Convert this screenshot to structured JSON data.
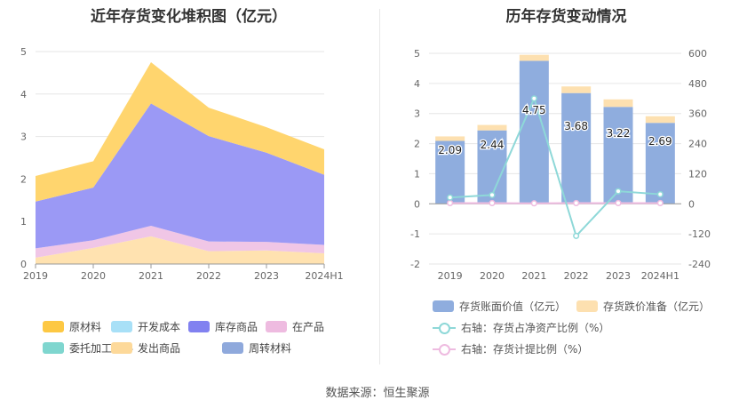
{
  "left_chart": {
    "title": "近年存货变化堆积图（亿元）",
    "chart_data": {
      "type": "area",
      "stacked": true,
      "categories": [
        "2019",
        "2020",
        "2021",
        "2022",
        "2023",
        "2024H1"
      ],
      "ylim": [
        0,
        5
      ],
      "yticks": [
        "0",
        "1",
        "2",
        "3",
        "4",
        "5"
      ],
      "series": [
        {
          "name": "发出商品",
          "color": "#ffe2b0",
          "values": [
            0.15,
            0.38,
            0.65,
            0.3,
            0.32,
            0.25
          ]
        },
        {
          "name": "在产品",
          "color": "#f0c6e6",
          "values": [
            0.22,
            0.18,
            0.25,
            0.23,
            0.2,
            0.2
          ]
        },
        {
          "name": "库存商品",
          "color": "#9b99f5",
          "values": [
            1.1,
            1.24,
            2.88,
            2.48,
            2.1,
            1.65
          ]
        },
        {
          "name": "原材料",
          "color": "#ffd56e",
          "values": [
            0.6,
            0.62,
            0.97,
            0.67,
            0.6,
            0.6
          ]
        }
      ],
      "legend": [
        {
          "name": "原材料",
          "color": "#fdc843"
        },
        {
          "name": "开发成本",
          "color": "#a8e0f7"
        },
        {
          "name": "库存商品",
          "color": "#8181f0"
        },
        {
          "name": "在产品",
          "color": "#eebbe0"
        },
        {
          "name": "委托加工材料",
          "color": "#7fd6cf"
        },
        {
          "name": "发出商品",
          "color": "#fdd99a"
        },
        {
          "name": "周转材料",
          "color": "#8fa9dc"
        }
      ],
      "grid": true,
      "legend_position": "bottom"
    }
  },
  "right_chart": {
    "title": "历年存货变动情况",
    "chart_data": {
      "type": "bar",
      "categories": [
        "2019",
        "2020",
        "2021",
        "2022",
        "2023",
        "2024H1"
      ],
      "ylim": [
        -2,
        5
      ],
      "yticks": [
        "-2",
        "-1",
        "0",
        "1",
        "2",
        "3",
        "4",
        "5"
      ],
      "y2lim": [
        -240,
        600
      ],
      "y2ticks": [
        "-240",
        "-120",
        "0",
        "120",
        "240",
        "360",
        "480",
        "600"
      ],
      "series": [
        {
          "name": "存货账面价值（亿元）",
          "color": "#8fadde",
          "values": [
            2.09,
            2.44,
            4.75,
            3.68,
            3.22,
            2.69
          ],
          "labels": [
            "2.09",
            "2.44",
            "4.75",
            "3.68",
            "3.22",
            "2.69"
          ]
        },
        {
          "name": "存货跌价准备（亿元）",
          "color": "#fde0b0",
          "values": [
            0.15,
            0.18,
            0.2,
            0.22,
            0.25,
            0.22
          ]
        },
        {
          "name": "右轴：存货占净资产比例（%）",
          "color": "#8ed8d8",
          "axis": "right",
          "values": [
            25,
            35,
            420,
            -128,
            50,
            38
          ]
        },
        {
          "name": "右轴：存货计提比例（%）",
          "color": "#eebbe0",
          "axis": "right",
          "values": [
            3,
            3,
            2,
            3,
            3,
            3
          ]
        }
      ],
      "grid": true,
      "legend_position": "bottom"
    }
  },
  "source": "数据来源：恒生聚源"
}
